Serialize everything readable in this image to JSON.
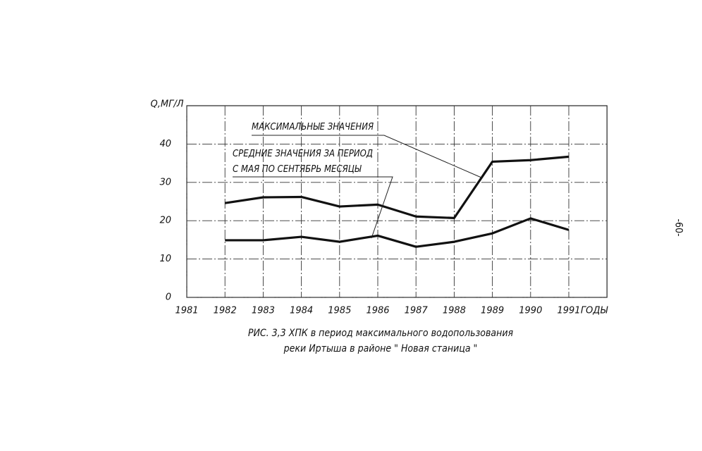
{
  "chart_data": {
    "type": "line",
    "y_label": "Q,МГ/Л",
    "x_label": "ГОДЫ",
    "caption": "РИС. 3,3  ХПК в период максимального водопользования\nреки Иртыша в районе \" Новая станица \"",
    "x": [
      1982,
      1983,
      1984,
      1985,
      1986,
      1987,
      1988,
      1989,
      1990,
      1991
    ],
    "xlim": [
      1981,
      1992
    ],
    "xticks": [
      1981,
      1982,
      1983,
      1984,
      1985,
      1986,
      1987,
      1988,
      1989,
      1990,
      1991
    ],
    "ylim": [
      0,
      50
    ],
    "yticks": [
      0,
      10,
      20,
      30,
      40
    ],
    "grid": true,
    "series": [
      {
        "name": "МАКСИМАЛЬНЫЕ ЗНАЧЕНИЯ",
        "color": "#111111",
        "values": [
          24.6,
          26.1,
          26.2,
          23.7,
          24.2,
          21.1,
          20.7,
          35.4,
          35.8,
          36.7
        ]
      },
      {
        "name": "СРЕДНИЕ ЗНАЧЕНИЯ ЗА ПЕРИОД\nС МАЯ ПО СЕНТЯБРЬ МЕСЯЦЫ",
        "color": "#111111",
        "values": [
          14.9,
          14.9,
          15.8,
          14.5,
          16.1,
          13.2,
          14.5,
          16.7,
          20.6,
          17.6
        ]
      }
    ]
  },
  "page_number": "-60-"
}
